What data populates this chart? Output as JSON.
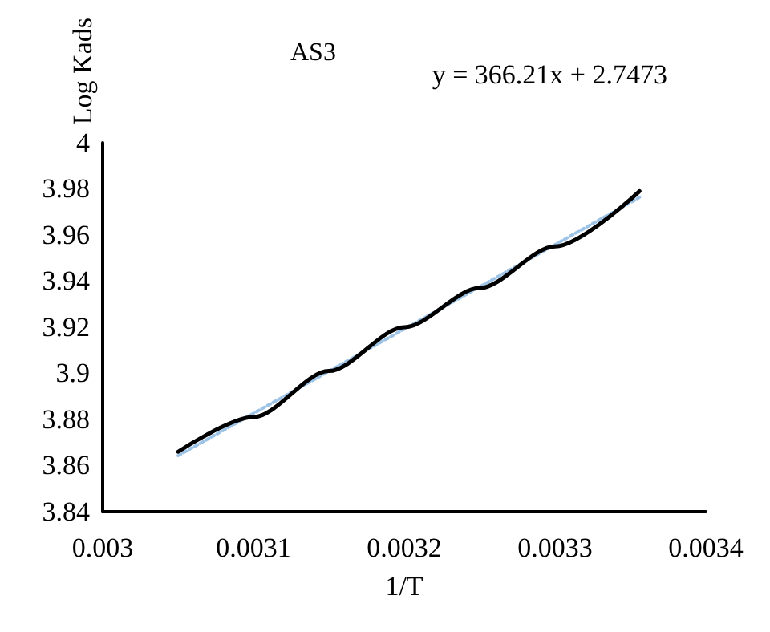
{
  "chart_data": {
    "type": "line",
    "title": "AS3",
    "xlabel": "1/T",
    "ylabel": "Log Kads",
    "annotations": [
      "y = 366.21x + 2.7473"
    ],
    "x": [
      0.00305,
      0.0031,
      0.00315,
      0.0032,
      0.00325,
      0.0033,
      0.003356
    ],
    "series": [
      {
        "color": "#000000",
        "values": [
          3.866,
          3.881,
          3.901,
          3.92,
          3.937,
          3.955,
          3.979
        ]
      },
      {
        "type": "line",
        "color": "#9dc3e6",
        "line_style": "dotted",
        "x": [
          0.00305,
          0.003356
        ],
        "values": [
          3.8643,
          3.9763
        ]
      }
    ],
    "xlim": [
      0.003,
      0.0034
    ],
    "xticks": [
      0.003,
      0.0031,
      0.0032,
      0.0033,
      0.0034
    ],
    "ylim": [
      3.84,
      4
    ],
    "yticks": [
      3.84,
      3.86,
      3.88,
      3.9,
      3.92,
      3.94,
      3.96,
      3.98,
      4
    ],
    "grid": false,
    "marker": "none",
    "line_style": "solid"
  }
}
